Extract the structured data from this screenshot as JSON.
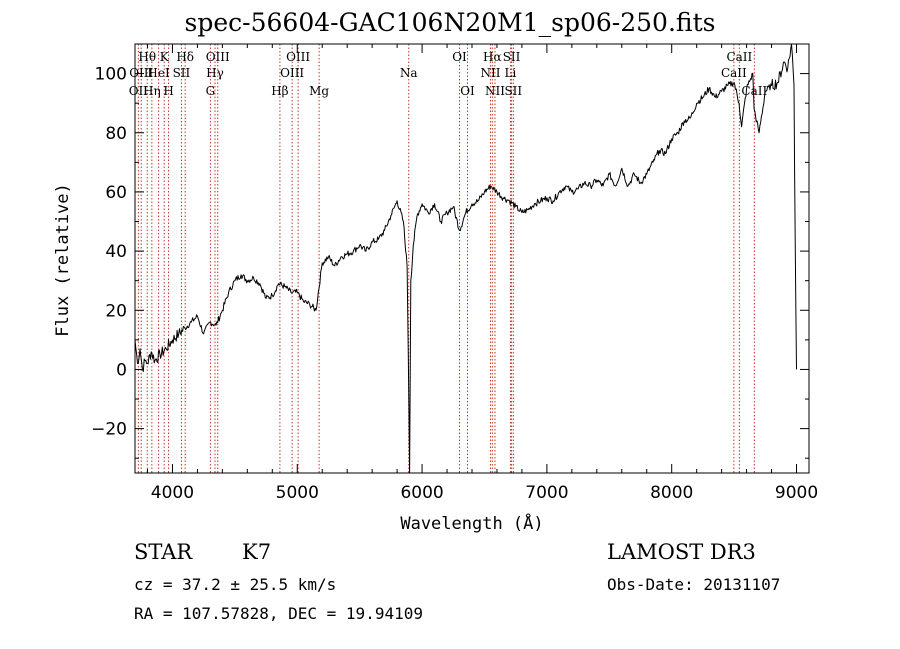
{
  "chart_data": {
    "type": "line",
    "title": "spec-56604-GAC106N20M1_sp06-250.fits",
    "xlabel": "Wavelength (Å)",
    "ylabel": "Flux (relative)",
    "xlim": [
      3700,
      9100
    ],
    "ylim": [
      -35,
      110
    ],
    "xticks": [
      4000,
      5000,
      6000,
      7000,
      8000,
      9000
    ],
    "yticks": [
      -20,
      0,
      20,
      40,
      60,
      80,
      100
    ],
    "series": [
      {
        "name": "spectrum",
        "x": [
          3700,
          3720,
          3740,
          3760,
          3780,
          3800,
          3830,
          3860,
          3900,
          3950,
          4000,
          4050,
          4100,
          4150,
          4200,
          4250,
          4300,
          4350,
          4400,
          4450,
          4500,
          4550,
          4600,
          4650,
          4700,
          4750,
          4800,
          4850,
          4900,
          4950,
          5000,
          5050,
          5100,
          5150,
          5200,
          5250,
          5300,
          5350,
          5400,
          5450,
          5500,
          5550,
          5600,
          5650,
          5700,
          5750,
          5800,
          5850,
          5880,
          5890,
          5900,
          5910,
          5930,
          5960,
          6000,
          6050,
          6100,
          6150,
          6200,
          6250,
          6300,
          6350,
          6400,
          6450,
          6500,
          6550,
          6600,
          6650,
          6700,
          6750,
          6800,
          6850,
          6900,
          6950,
          7000,
          7050,
          7100,
          7150,
          7200,
          7250,
          7300,
          7350,
          7400,
          7450,
          7500,
          7550,
          7600,
          7650,
          7700,
          7750,
          7800,
          7850,
          7900,
          7950,
          8000,
          8050,
          8100,
          8150,
          8200,
          8250,
          8300,
          8350,
          8400,
          8450,
          8500,
          8540,
          8560,
          8600,
          8650,
          8660,
          8700,
          8750,
          8800,
          8850,
          8900,
          8930,
          8960,
          8980,
          8990,
          9000
        ],
        "y": [
          10,
          2,
          7,
          0,
          3,
          2,
          6,
          3,
          5,
          7,
          10,
          12,
          14,
          16,
          18,
          12,
          16,
          15,
          20,
          26,
          30,
          32,
          30,
          31,
          29,
          24,
          25,
          29,
          28,
          26,
          26,
          23,
          22,
          20,
          36,
          38,
          35,
          38,
          39,
          40,
          42,
          40,
          43,
          44,
          47,
          52,
          57,
          50,
          35,
          5,
          -35,
          30,
          42,
          52,
          56,
          53,
          56,
          50,
          53,
          55,
          47,
          53,
          56,
          57,
          60,
          62,
          60,
          58,
          57,
          55,
          53,
          54,
          56,
          57,
          58,
          57,
          60,
          62,
          60,
          61,
          63,
          62,
          64,
          62,
          66,
          62,
          68,
          62,
          66,
          63,
          66,
          70,
          74,
          73,
          78,
          80,
          84,
          85,
          90,
          92,
          95,
          92,
          94,
          96,
          97,
          90,
          82,
          95,
          100,
          88,
          80,
          94,
          96,
          97,
          104,
          102,
          110,
          96,
          40,
          0
        ]
      }
    ],
    "lines": [
      {
        "label": "Hθ",
        "x": 3798,
        "row": 1
      },
      {
        "label": "Hη",
        "x": 3835,
        "row": 3
      },
      {
        "label": "OII",
        "x": 3727,
        "row": 3
      },
      {
        "label": "OIII",
        "x": 3750,
        "row": 2
      },
      {
        "label": "HeI",
        "x": 3889,
        "row": 2
      },
      {
        "label": "K",
        "x": 3934,
        "row": 1
      },
      {
        "label": "H",
        "x": 3969,
        "row": 3
      },
      {
        "label": "SII",
        "x": 4072,
        "row": 2
      },
      {
        "label": "Hδ",
        "x": 4102,
        "row": 1
      },
      {
        "label": "OIII",
        "x": 4363,
        "row": 1
      },
      {
        "label": "Hγ",
        "x": 4341,
        "row": 2
      },
      {
        "label": "G",
        "x": 4304,
        "row": 3
      },
      {
        "label": "Hβ",
        "x": 4861,
        "row": 3
      },
      {
        "label": "OIII",
        "x": 5007,
        "row": 1
      },
      {
        "label": "OIII",
        "x": 4959,
        "row": 2
      },
      {
        "label": "Mg",
        "x": 5175,
        "row": 3
      },
      {
        "label": "Na",
        "x": 5893,
        "row": 2
      },
      {
        "label": "OI",
        "x": 6300,
        "row": 1
      },
      {
        "label": "OI",
        "x": 6364,
        "row": 3
      },
      {
        "label": "Hα",
        "x": 6563,
        "row": 1
      },
      {
        "label": "NII",
        "x": 6548,
        "row": 2
      },
      {
        "label": "NII",
        "x": 6584,
        "row": 3
      },
      {
        "label": "SII",
        "x": 6717,
        "row": 1
      },
      {
        "label": "SII",
        "x": 6731,
        "row": 3
      },
      {
        "label": "Li",
        "x": 6708,
        "row": 2
      },
      {
        "label": "CaII",
        "x": 8542,
        "row": 1
      },
      {
        "label": "CaII",
        "x": 8498,
        "row": 2
      },
      {
        "label": "CaII",
        "x": 8662,
        "row": 3
      }
    ]
  },
  "info": {
    "object_class": "STAR",
    "subclass": "K7",
    "survey": "LAMOST DR3",
    "redshift": "cz = 37.2 ± 25.5 km/s",
    "obs_date": "Obs-Date: 20131107",
    "coords": "RA = 107.57828, DEC =  19.94109"
  }
}
